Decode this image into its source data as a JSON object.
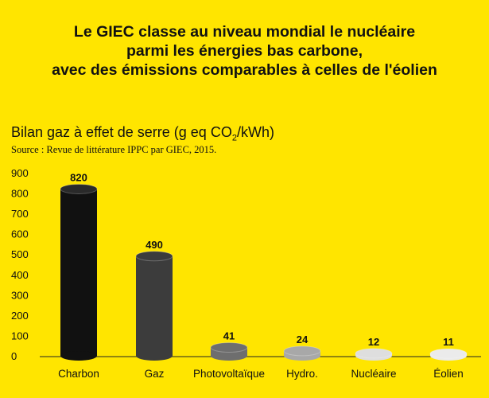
{
  "headline": {
    "line1": "Le GIEC classe au niveau mondial le nucléaire",
    "line2": "parmi les énergies bas carbone,",
    "line3": "avec des émissions comparables à celles de l'éolien"
  },
  "subtitle": {
    "before_sub": "Bilan gaz à effet de serre (g eq CO",
    "sub": "2",
    "after_sub": "/kWh)"
  },
  "source": "Source : Revue de littérature IPPC par GIEC, 2015.",
  "colors": {
    "background": "#FFE500",
    "bars": [
      "#111111",
      "#3c3c3c",
      "#6e6e6e",
      "#a8a8a8",
      "#dedede",
      "#ebebeb"
    ]
  },
  "chart_data": {
    "type": "bar",
    "title": "Bilan gaz à effet de serre (g eq CO2/kWh)",
    "categories": [
      "Charbon",
      "Gaz",
      "Photovoltaïque",
      "Hydro.",
      "Nucléaire",
      "Éolien"
    ],
    "values": [
      820,
      490,
      41,
      24,
      12,
      11
    ],
    "data_labels": [
      "820",
      "490",
      "41",
      "24",
      "12",
      "11"
    ],
    "yticks": [
      0,
      100,
      200,
      300,
      400,
      500,
      600,
      700,
      800,
      900
    ],
    "ylim": [
      0,
      900
    ],
    "xlabel": "",
    "ylabel": "",
    "grid": false,
    "legend": "none"
  }
}
